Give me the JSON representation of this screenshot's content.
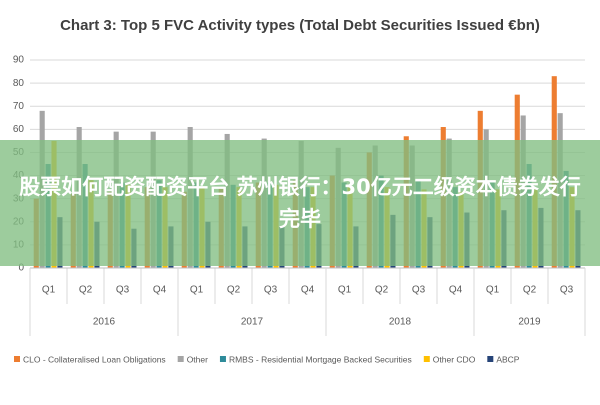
{
  "chart_data": {
    "type": "bar",
    "title": "Chart 3: Top 5 FVC Activity types (Total Debt Securities Issued €bn)",
    "groups": [
      {
        "label": "2016",
        "quarters": [
          "Q1",
          "Q2",
          "Q3",
          "Q4"
        ]
      },
      {
        "label": "2017",
        "quarters": [
          "Q1",
          "Q2",
          "Q3",
          "Q4"
        ]
      },
      {
        "label": "2018",
        "quarters": [
          "Q1",
          "Q2",
          "Q3",
          "Q4"
        ]
      },
      {
        "label": "2019",
        "quarters": [
          "Q1",
          "Q2",
          "Q3"
        ]
      }
    ],
    "series": [
      {
        "name": "CLO - Collateralised Loan Obligations",
        "color": "#ed7d31",
        "values": [
          30,
          32,
          33,
          35,
          33,
          35,
          37,
          38,
          40,
          50,
          57,
          61,
          68,
          75,
          83
        ]
      },
      {
        "name": "Other",
        "color": "#a5a5a5",
        "values": [
          68,
          61,
          59,
          59,
          61,
          58,
          56,
          55,
          52,
          53,
          53,
          56,
          60,
          66,
          67
        ]
      },
      {
        "name": "RMBS - Residential Mortgage Backed Securities",
        "color": "#2e8b9a",
        "values": [
          45,
          45,
          37,
          38,
          37,
          36,
          37,
          35,
          37,
          40,
          38,
          35,
          37,
          45,
          42
        ]
      },
      {
        "name": "Other CDO",
        "color": "#ffc000",
        "values": [
          55,
          38,
          36,
          35,
          35,
          35,
          36,
          35,
          35,
          35,
          34,
          33,
          34,
          34,
          35
        ]
      },
      {
        "name": "ABCP",
        "color": "#264478",
        "values": [
          22,
          20,
          17,
          18,
          20,
          18,
          18,
          19,
          18,
          23,
          22,
          24,
          25,
          26,
          25
        ]
      }
    ],
    "ylim": [
      0,
      90
    ],
    "yticks": [
      0,
      10,
      20,
      30,
      40,
      50,
      60,
      70,
      80,
      90
    ],
    "grid": true,
    "legend": "bottom"
  },
  "banner": {
    "text": "股票如何配资配资平台 苏州银行：30亿元二级资本债券发行完毕"
  }
}
